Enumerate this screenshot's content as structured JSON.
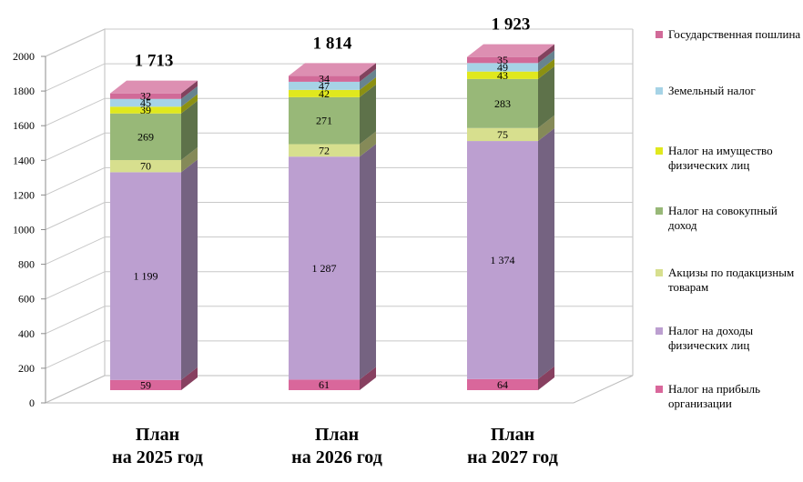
{
  "chart_data": {
    "type": "stacked-bar-3d",
    "categories": [
      "План\nна 2025 год",
      "План\nна 2026 год",
      "План\nна 2027 год"
    ],
    "totals": [
      "1 713",
      "1 814",
      "1 923"
    ],
    "ylim": [
      0,
      2000
    ],
    "yticks": [
      "0",
      "200",
      "400",
      "600",
      "800",
      "1000",
      "1200",
      "1400",
      "1600",
      "1800",
      "2000"
    ],
    "grid": true,
    "legend_position": "right",
    "series": [
      {
        "name": "Налог на прибыль организации",
        "color": "#d9679b",
        "values": [
          59,
          61,
          64
        ],
        "labels": [
          "59",
          "61",
          "64"
        ]
      },
      {
        "name": "Налог на доходы физических лиц",
        "color": "#bc9fd0",
        "values": [
          1199,
          1287,
          1374
        ],
        "labels": [
          "1 199",
          "1 287",
          "1 374"
        ]
      },
      {
        "name": "Акцизы по подакцизным товарам",
        "color": "#d7df8e",
        "values": [
          70,
          72,
          75
        ],
        "labels": [
          "70",
          "72",
          "75"
        ]
      },
      {
        "name": "Налог на совокупный доход",
        "color": "#98b878",
        "values": [
          269,
          271,
          283
        ],
        "labels": [
          "269",
          "271",
          "283"
        ]
      },
      {
        "name": "Налог на имущество физических лиц",
        "color": "#e0e81e",
        "values": [
          39,
          42,
          43
        ],
        "labels": [
          "39",
          "42",
          "43"
        ]
      },
      {
        "name": "Земельный налог",
        "color": "#a6d3e6",
        "values": [
          45,
          47,
          49
        ],
        "labels": [
          "45",
          "47",
          "49"
        ]
      },
      {
        "name": "Государственная пошлина",
        "color": "#d16a98",
        "values": [
          32,
          34,
          35
        ],
        "labels": [
          "32",
          "34",
          "35"
        ]
      }
    ]
  }
}
